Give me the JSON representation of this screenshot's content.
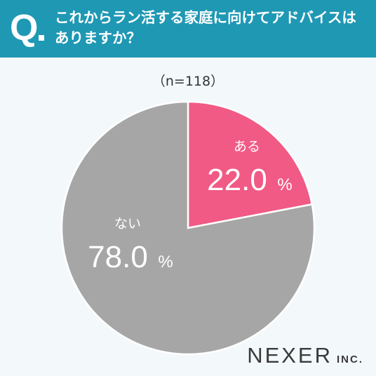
{
  "header": {
    "q_mark": "Q",
    "question_lines": [
      "これからラン活する家庭に向けてアドバイスは",
      "ありますか？"
    ]
  },
  "sample_label": "（n=118）",
  "brand": {
    "name": "NEXER",
    "suffix": "INC."
  },
  "colors": {
    "header_bg": "#1f98b4",
    "slice_yes": "#f15a85",
    "slice_no": "#a6a6a6"
  },
  "chart_data": {
    "type": "pie",
    "slices": [
      {
        "label": "ある",
        "value": 22.0,
        "display": "22.0",
        "unit": "%",
        "color": "#f15a85"
      },
      {
        "label": "ない",
        "value": 78.0,
        "display": "78.0",
        "unit": "%",
        "color": "#a6a6a6"
      }
    ]
  }
}
